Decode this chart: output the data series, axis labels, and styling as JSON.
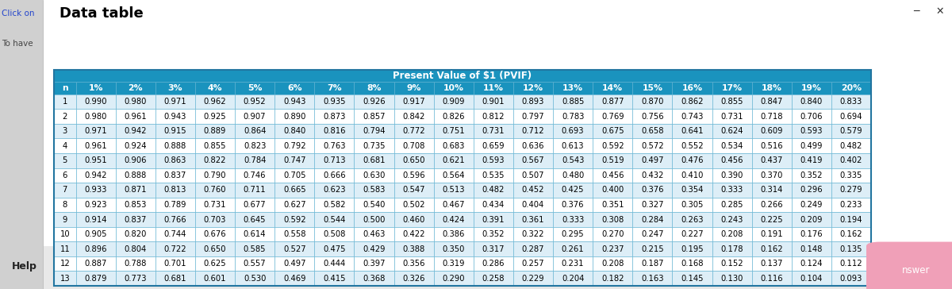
{
  "title": "Present Value of $1 (PVIF)",
  "window_title": "Data table",
  "headers": [
    "n",
    "1%",
    "2%",
    "3%",
    "4%",
    "5%",
    "6%",
    "7%",
    "8%",
    "9%",
    "10%",
    "11%",
    "12%",
    "13%",
    "14%",
    "15%",
    "16%",
    "17%",
    "18%",
    "19%",
    "20%"
  ],
  "rows": [
    [
      1,
      0.99,
      0.98,
      0.971,
      0.962,
      0.952,
      0.943,
      0.935,
      0.926,
      0.917,
      0.909,
      0.901,
      0.893,
      0.885,
      0.877,
      0.87,
      0.862,
      0.855,
      0.847,
      0.84,
      0.833
    ],
    [
      2,
      0.98,
      0.961,
      0.943,
      0.925,
      0.907,
      0.89,
      0.873,
      0.857,
      0.842,
      0.826,
      0.812,
      0.797,
      0.783,
      0.769,
      0.756,
      0.743,
      0.731,
      0.718,
      0.706,
      0.694
    ],
    [
      3,
      0.971,
      0.942,
      0.915,
      0.889,
      0.864,
      0.84,
      0.816,
      0.794,
      0.772,
      0.751,
      0.731,
      0.712,
      0.693,
      0.675,
      0.658,
      0.641,
      0.624,
      0.609,
      0.593,
      0.579
    ],
    [
      4,
      0.961,
      0.924,
      0.888,
      0.855,
      0.823,
      0.792,
      0.763,
      0.735,
      0.708,
      0.683,
      0.659,
      0.636,
      0.613,
      0.592,
      0.572,
      0.552,
      0.534,
      0.516,
      0.499,
      0.482
    ],
    [
      5,
      0.951,
      0.906,
      0.863,
      0.822,
      0.784,
      0.747,
      0.713,
      0.681,
      0.65,
      0.621,
      0.593,
      0.567,
      0.543,
      0.519,
      0.497,
      0.476,
      0.456,
      0.437,
      0.419,
      0.402
    ],
    [
      6,
      0.942,
      0.888,
      0.837,
      0.79,
      0.746,
      0.705,
      0.666,
      0.63,
      0.596,
      0.564,
      0.535,
      0.507,
      0.48,
      0.456,
      0.432,
      0.41,
      0.39,
      0.37,
      0.352,
      0.335
    ],
    [
      7,
      0.933,
      0.871,
      0.813,
      0.76,
      0.711,
      0.665,
      0.623,
      0.583,
      0.547,
      0.513,
      0.482,
      0.452,
      0.425,
      0.4,
      0.376,
      0.354,
      0.333,
      0.314,
      0.296,
      0.279
    ],
    [
      8,
      0.923,
      0.853,
      0.789,
      0.731,
      0.677,
      0.627,
      0.582,
      0.54,
      0.502,
      0.467,
      0.434,
      0.404,
      0.376,
      0.351,
      0.327,
      0.305,
      0.285,
      0.266,
      0.249,
      0.233
    ],
    [
      9,
      0.914,
      0.837,
      0.766,
      0.703,
      0.645,
      0.592,
      0.544,
      0.5,
      0.46,
      0.424,
      0.391,
      0.361,
      0.333,
      0.308,
      0.284,
      0.263,
      0.243,
      0.225,
      0.209,
      0.194
    ],
    [
      10,
      0.905,
      0.82,
      0.744,
      0.676,
      0.614,
      0.558,
      0.508,
      0.463,
      0.422,
      0.386,
      0.352,
      0.322,
      0.295,
      0.27,
      0.247,
      0.227,
      0.208,
      0.191,
      0.176,
      0.162
    ],
    [
      11,
      0.896,
      0.804,
      0.722,
      0.65,
      0.585,
      0.527,
      0.475,
      0.429,
      0.388,
      0.35,
      0.317,
      0.287,
      0.261,
      0.237,
      0.215,
      0.195,
      0.178,
      0.162,
      0.148,
      0.135
    ],
    [
      12,
      0.887,
      0.788,
      0.701,
      0.625,
      0.557,
      0.497,
      0.444,
      0.397,
      0.356,
      0.319,
      0.286,
      0.257,
      0.231,
      0.208,
      0.187,
      0.168,
      0.152,
      0.137,
      0.124,
      0.112
    ],
    [
      13,
      0.879,
      0.773,
      0.681,
      0.601,
      0.53,
      0.469,
      0.415,
      0.368,
      0.326,
      0.29,
      0.258,
      0.229,
      0.204,
      0.182,
      0.163,
      0.145,
      0.13,
      0.116,
      0.104,
      0.093
    ]
  ],
  "header_bg": "#1a93be",
  "header_text": "#ffffff",
  "row_bg_even": "#ddeef7",
  "row_bg_odd": "#ffffff",
  "cell_border": "#5aafd0",
  "table_border": "#2275a0",
  "window_bg": "#ffffff",
  "outer_bg": "#d0d0d0",
  "panel_bg": "#f0f0f0",
  "title_color": "#000000",
  "click_on_color": "#2244cc",
  "to_have_color": "#444444",
  "help_color": "#222222",
  "answer_bg": "#f0a0b8",
  "answer_text": "#ffffff",
  "title_fontsize": 13,
  "cell_fontsize": 7.2,
  "header_fontsize": 7.8,
  "pvif_title_fontsize": 8.5
}
